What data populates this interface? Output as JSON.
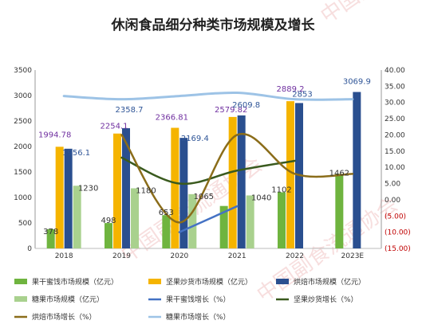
{
  "chart_data": {
    "type": "bar",
    "title": "休闲食品细分种类市场规模及增长",
    "categories": [
      "2018",
      "2019",
      "2020",
      "2021",
      "2022",
      "2023E"
    ],
    "left_axis": {
      "min": 0,
      "max": 3500,
      "step": 500,
      "ticks": [
        "0",
        "500",
        "1000",
        "1500",
        "2000",
        "2500",
        "3000",
        "3500"
      ]
    },
    "right_axis": {
      "min": -15,
      "max": 40,
      "step": 5,
      "ticks": [
        "(15.00)",
        "(10.00)",
        "(5.00)",
        "0.00",
        "5.00",
        "10.00",
        "15.00",
        "20.00",
        "25.00",
        "30.00",
        "35.00",
        "40.00"
      ]
    },
    "bar_series": [
      {
        "name": "果干蜜饯市场规模（亿元）",
        "color": "#6fb43f",
        "values": [
          378,
          498,
          653,
          833,
          1102,
          1462
        ],
        "labels": [
          "378",
          "498",
          "653",
          "",
          "1102",
          "1462"
        ]
      },
      {
        "name": "坚果炒货市场规模（亿元）",
        "color": "#f5b400",
        "values": [
          1994.78,
          2254.1,
          2366.81,
          2579.82,
          2889.2,
          null
        ],
        "labels": [
          "1994.78",
          "2254.1",
          "2366.81",
          "2579.82",
          "2889.2",
          ""
        ]
      },
      {
        "name": "烘焙市场规模（亿元）",
        "color": "#2a4f8f",
        "values": [
          1956.1,
          2358.7,
          2169.4,
          2609.8,
          2853,
          3069.9
        ],
        "labels": [
          "1956.1",
          "2358.7",
          "2169.4",
          "2609.8",
          "2853",
          "3069.9"
        ]
      },
      {
        "name": "糖果市场规模（亿元）",
        "color": "#a9d18e",
        "values": [
          1230,
          1180,
          1065,
          1040,
          null,
          null
        ],
        "labels": [
          "1230",
          "1180",
          "1065",
          "1040",
          "",
          ""
        ]
      }
    ],
    "line_series": [
      {
        "name": "果干蜜饯增长（%）",
        "color": "#4472c4",
        "values": [
          null,
          null,
          -10,
          -2,
          null,
          null
        ]
      },
      {
        "name": "坚果炒货增长（%）",
        "color": "#3a5a1e",
        "values": [
          null,
          13,
          5,
          9,
          12,
          null
        ]
      },
      {
        "name": "烘焙市场增长（%）",
        "color": "#8b6d1a",
        "values": [
          null,
          20,
          -7,
          20,
          8,
          8
        ]
      },
      {
        "name": "糖果市场增长（%）",
        "color": "#9dc3e6",
        "values": [
          32,
          31,
          32,
          33,
          31,
          31
        ]
      }
    ],
    "legend_position": "bottom",
    "grid": false
  },
  "watermark": "中国副食流通协会"
}
